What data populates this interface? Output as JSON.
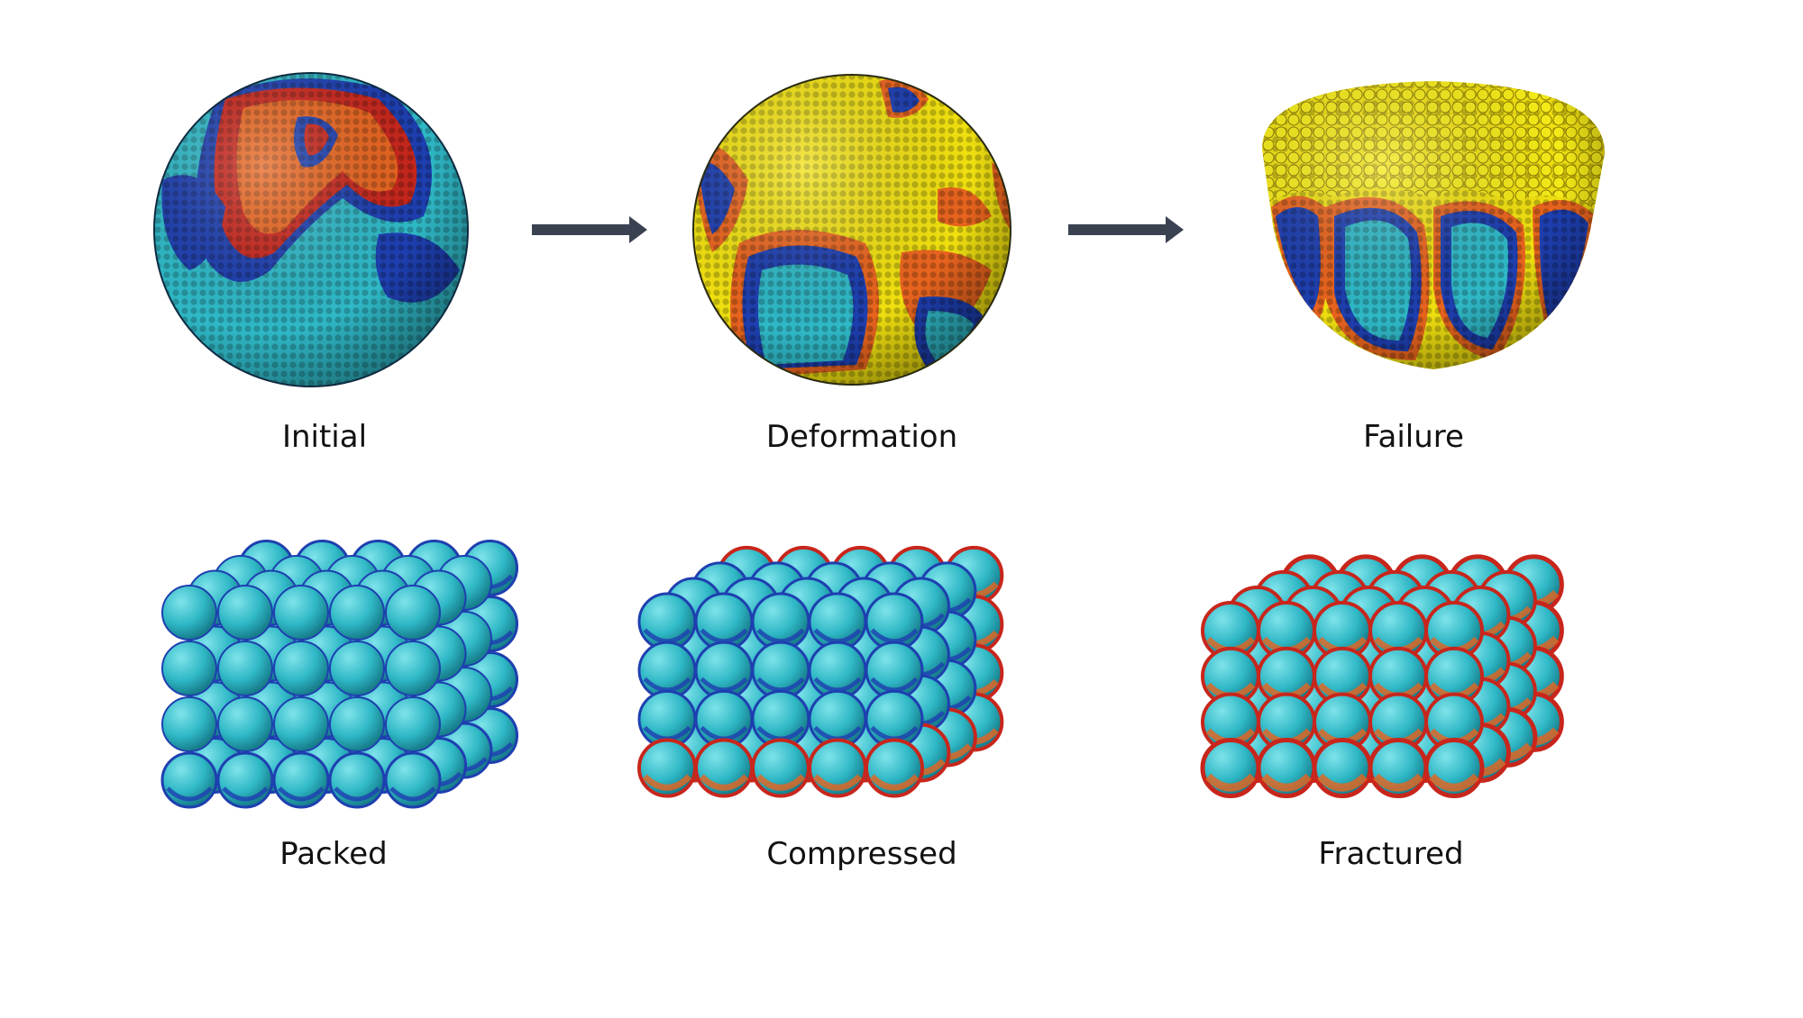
{
  "row1": {
    "stages": [
      {
        "label": "Initial"
      },
      {
        "label": "Deformation"
      },
      {
        "label": "Failure"
      }
    ]
  },
  "row2": {
    "stages": [
      {
        "label": "Packed"
      },
      {
        "label": "Compressed"
      },
      {
        "label": "Fractured"
      }
    ]
  },
  "colors": {
    "cyan": "#2fb8c6",
    "blue": "#1e3fb0",
    "orange": "#e8641e",
    "red": "#c8261c",
    "yellow": "#f0e010",
    "arrow": "#3a4252"
  },
  "icons": [
    "right-arrow-icon",
    "right-arrow-icon"
  ]
}
